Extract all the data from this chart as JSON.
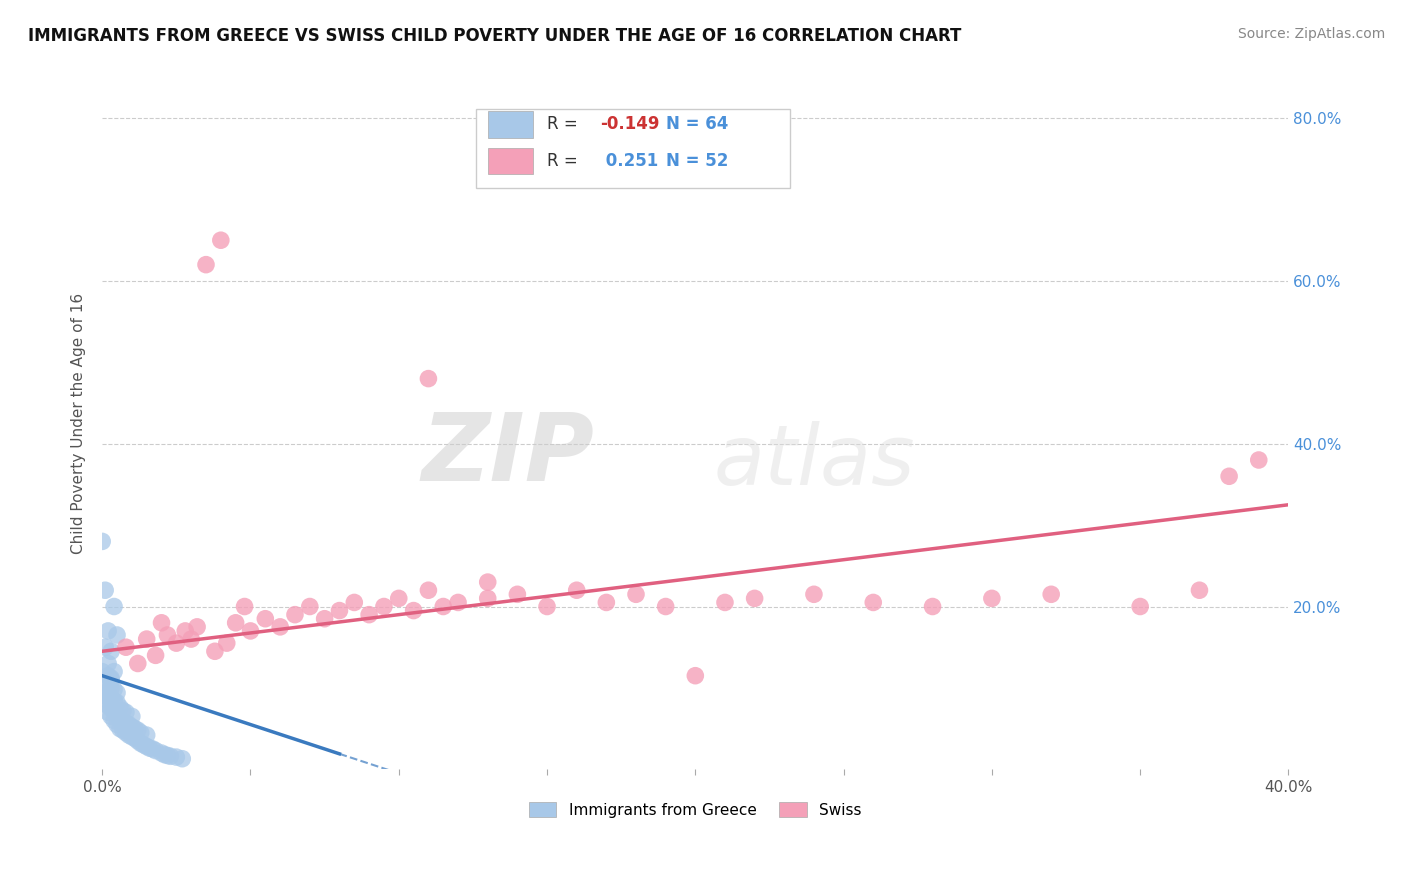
{
  "title": "IMMIGRANTS FROM GREECE VS SWISS CHILD POVERTY UNDER THE AGE OF 16 CORRELATION CHART",
  "source": "Source: ZipAtlas.com",
  "ylabel": "Child Poverty Under the Age of 16",
  "xlim": [
    0.0,
    0.4
  ],
  "ylim": [
    0.0,
    0.85
  ],
  "xticks": [
    0.0,
    0.05,
    0.1,
    0.15,
    0.2,
    0.25,
    0.3,
    0.35,
    0.4
  ],
  "yticks": [
    0.0,
    0.2,
    0.4,
    0.6,
    0.8
  ],
  "blue_R": -0.149,
  "blue_N": 64,
  "pink_R": 0.251,
  "pink_N": 52,
  "blue_color": "#a8c8e8",
  "pink_color": "#f4a0b8",
  "blue_line_color": "#3a7abf",
  "pink_line_color": "#e06080",
  "blue_dots_x": [
    0.0,
    0.0,
    0.001,
    0.001,
    0.001,
    0.002,
    0.002,
    0.002,
    0.002,
    0.003,
    0.003,
    0.003,
    0.003,
    0.003,
    0.004,
    0.004,
    0.004,
    0.004,
    0.005,
    0.005,
    0.005,
    0.005,
    0.006,
    0.006,
    0.006,
    0.007,
    0.007,
    0.007,
    0.008,
    0.008,
    0.008,
    0.009,
    0.009,
    0.01,
    0.01,
    0.01,
    0.011,
    0.011,
    0.012,
    0.012,
    0.013,
    0.013,
    0.014,
    0.015,
    0.015,
    0.016,
    0.017,
    0.018,
    0.02,
    0.021,
    0.022,
    0.023,
    0.025,
    0.027,
    0.0,
    0.001,
    0.002,
    0.003,
    0.004,
    0.005,
    0.001,
    0.002,
    0.003,
    0.004
  ],
  "blue_dots_y": [
    0.1,
    0.12,
    0.08,
    0.09,
    0.11,
    0.07,
    0.085,
    0.095,
    0.115,
    0.065,
    0.075,
    0.088,
    0.1,
    0.112,
    0.06,
    0.072,
    0.084,
    0.098,
    0.055,
    0.068,
    0.082,
    0.094,
    0.05,
    0.062,
    0.076,
    0.048,
    0.058,
    0.072,
    0.045,
    0.057,
    0.07,
    0.042,
    0.055,
    0.04,
    0.052,
    0.065,
    0.038,
    0.05,
    0.035,
    0.048,
    0.032,
    0.045,
    0.03,
    0.028,
    0.042,
    0.026,
    0.025,
    0.023,
    0.02,
    0.018,
    0.017,
    0.016,
    0.015,
    0.013,
    0.28,
    0.22,
    0.17,
    0.145,
    0.2,
    0.165,
    0.15,
    0.13,
    0.11,
    0.12
  ],
  "pink_dots_x": [
    0.008,
    0.012,
    0.015,
    0.018,
    0.02,
    0.022,
    0.025,
    0.028,
    0.03,
    0.032,
    0.035,
    0.038,
    0.04,
    0.042,
    0.045,
    0.048,
    0.05,
    0.055,
    0.06,
    0.065,
    0.07,
    0.075,
    0.08,
    0.085,
    0.09,
    0.095,
    0.1,
    0.105,
    0.11,
    0.115,
    0.12,
    0.13,
    0.14,
    0.15,
    0.16,
    0.17,
    0.18,
    0.19,
    0.2,
    0.21,
    0.22,
    0.24,
    0.26,
    0.28,
    0.3,
    0.32,
    0.35,
    0.37,
    0.38,
    0.39,
    0.11,
    0.13
  ],
  "pink_dots_y": [
    0.15,
    0.13,
    0.16,
    0.14,
    0.18,
    0.165,
    0.155,
    0.17,
    0.16,
    0.175,
    0.62,
    0.145,
    0.65,
    0.155,
    0.18,
    0.2,
    0.17,
    0.185,
    0.175,
    0.19,
    0.2,
    0.185,
    0.195,
    0.205,
    0.19,
    0.2,
    0.21,
    0.195,
    0.48,
    0.2,
    0.205,
    0.21,
    0.215,
    0.2,
    0.22,
    0.205,
    0.215,
    0.2,
    0.115,
    0.205,
    0.21,
    0.215,
    0.205,
    0.2,
    0.21,
    0.215,
    0.2,
    0.22,
    0.36,
    0.38,
    0.22,
    0.23
  ],
  "watermark_zip": "ZIP",
  "watermark_atlas": "atlas",
  "background_color": "#ffffff",
  "grid_color": "#cccccc"
}
